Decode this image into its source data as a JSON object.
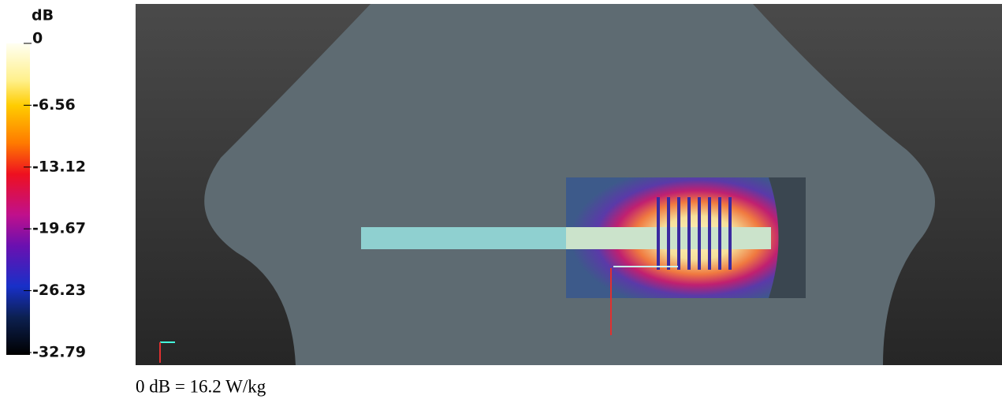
{
  "colorbar": {
    "unit": "dB",
    "ticks": [
      0,
      -6.56,
      -13.12,
      -19.67,
      -26.23,
      -32.79
    ]
  },
  "caption": "0 dB = 16.2 W/kg"
}
